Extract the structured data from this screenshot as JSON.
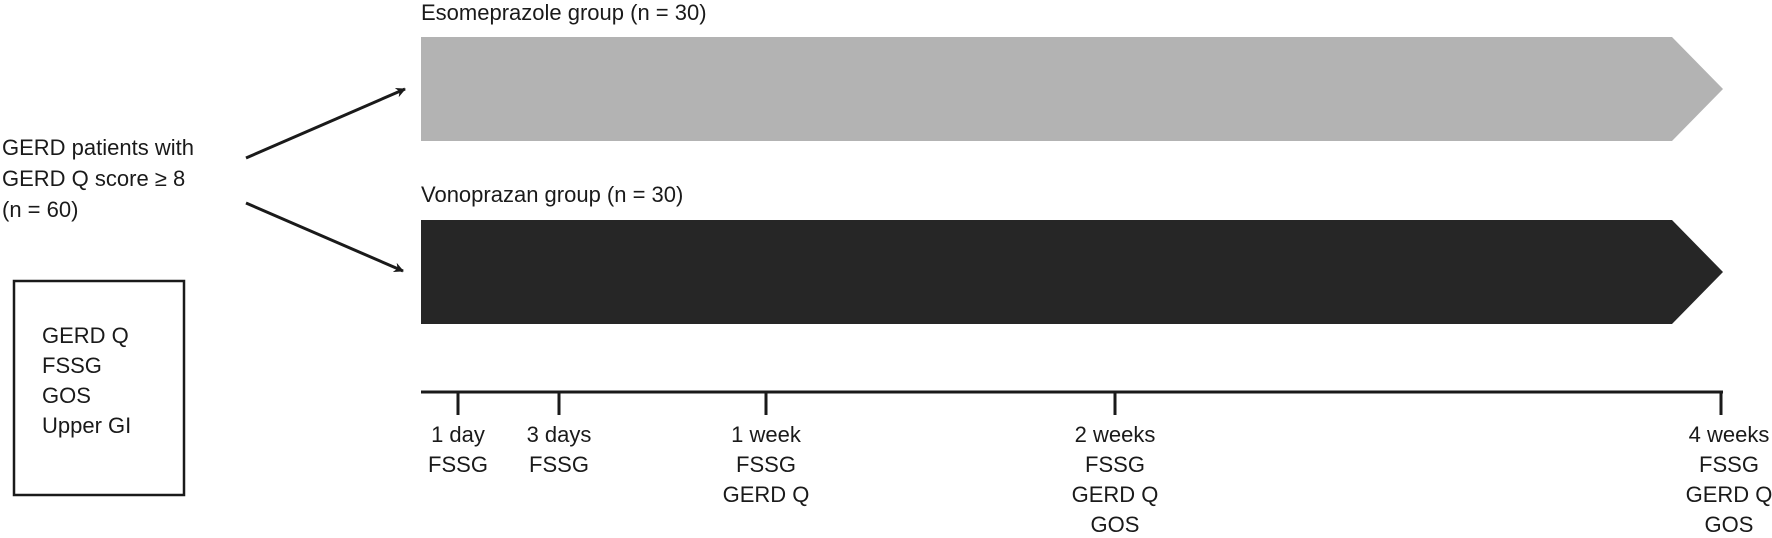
{
  "groups": [
    {
      "label": "Esomeprazole group (n = 30)"
    },
    {
      "label": "Vonoprazan group (n = 30)"
    }
  ],
  "patients": {
    "lines": [
      "GERD patients with",
      "GERD Q score ≥ 8",
      "(n = 60)"
    ]
  },
  "baseline_box": {
    "lines": [
      "GERD Q",
      "FSSG",
      "GOS",
      "Upper GI"
    ]
  },
  "timepoints": [
    {
      "lines": [
        "1 day",
        "FSSG"
      ]
    },
    {
      "lines": [
        "3 days",
        "FSSG"
      ]
    },
    {
      "lines": [
        "1 week",
        "FSSG",
        "GERD Q"
      ]
    },
    {
      "lines": [
        "2 weeks",
        "FSSG",
        "GERD Q",
        "GOS"
      ]
    },
    {
      "lines": [
        "4 weeks",
        "FSSG",
        "GERD Q",
        "GOS"
      ]
    }
  ]
}
